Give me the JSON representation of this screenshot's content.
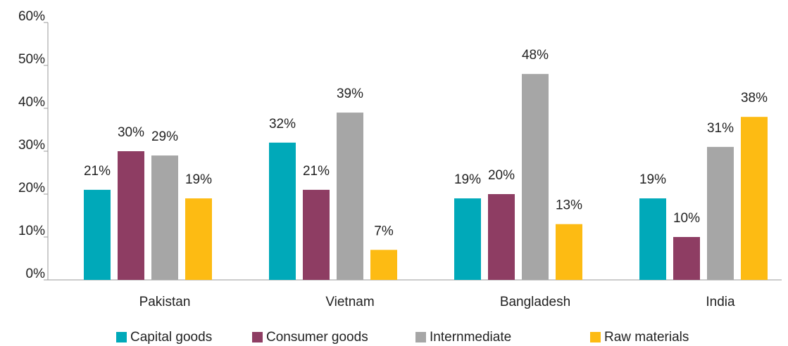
{
  "chart_data": {
    "type": "bar",
    "categories": [
      "Pakistan",
      "Vietnam",
      "Bangladesh",
      "India"
    ],
    "series": [
      {
        "name": "Capital goods",
        "color": "#00a9b9",
        "values": [
          21,
          32,
          19,
          19
        ],
        "value_labels": [
          "21%",
          "32%",
          "19%",
          "19%"
        ]
      },
      {
        "name": "Consumer goods",
        "color": "#8e3d63",
        "values": [
          30,
          21,
          20,
          10
        ],
        "value_labels": [
          "30%",
          "21%",
          "20%",
          "10%"
        ]
      },
      {
        "name": "Internmediate",
        "color": "#a6a6a6",
        "values": [
          29,
          39,
          48,
          31
        ],
        "value_labels": [
          "29%",
          "39%",
          "48%",
          "31%"
        ]
      },
      {
        "name": "Raw materials",
        "color": "#fdbb13",
        "values": [
          19,
          7,
          13,
          38
        ],
        "value_labels": [
          "19%",
          "7%",
          "13%",
          "38%"
        ]
      }
    ],
    "ylim": [
      0,
      60
    ],
    "yticks": [
      {
        "value": 0,
        "label": "0%"
      },
      {
        "value": 10,
        "label": "10%"
      },
      {
        "value": 20,
        "label": "20%"
      },
      {
        "value": 30,
        "label": "30%"
      },
      {
        "value": 40,
        "label": "40%"
      },
      {
        "value": 50,
        "label": "50%"
      },
      {
        "value": 60,
        "label": "60%"
      }
    ],
    "legend": "bottom"
  }
}
